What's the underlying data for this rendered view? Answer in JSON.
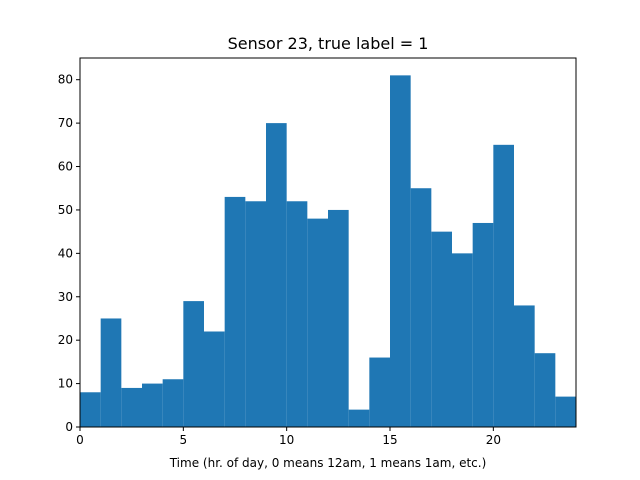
{
  "chart_data": {
    "type": "bar",
    "title": "Sensor 23, true label = 1",
    "xlabel": "Time (hr. of day, 0 means 12am, 1 means 1am, etc.)",
    "ylabel": "",
    "xlim": [
      0,
      24
    ],
    "ylim": [
      0,
      85
    ],
    "xticks": [
      0,
      5,
      10,
      15,
      20
    ],
    "yticks": [
      0,
      10,
      20,
      30,
      40,
      50,
      60,
      70,
      80
    ],
    "bin_width": 1,
    "bins": [
      0,
      1,
      2,
      3,
      4,
      5,
      6,
      7,
      8,
      9,
      10,
      11,
      12,
      13,
      14,
      15,
      16,
      17,
      18,
      19,
      20,
      21,
      22,
      23
    ],
    "values": [
      8,
      25,
      9,
      10,
      11,
      29,
      22,
      53,
      52,
      70,
      52,
      48,
      50,
      4,
      16,
      81,
      55,
      45,
      40,
      47,
      65,
      28,
      17,
      7
    ],
    "bar_color": "#1f77b4",
    "grid": false
  }
}
